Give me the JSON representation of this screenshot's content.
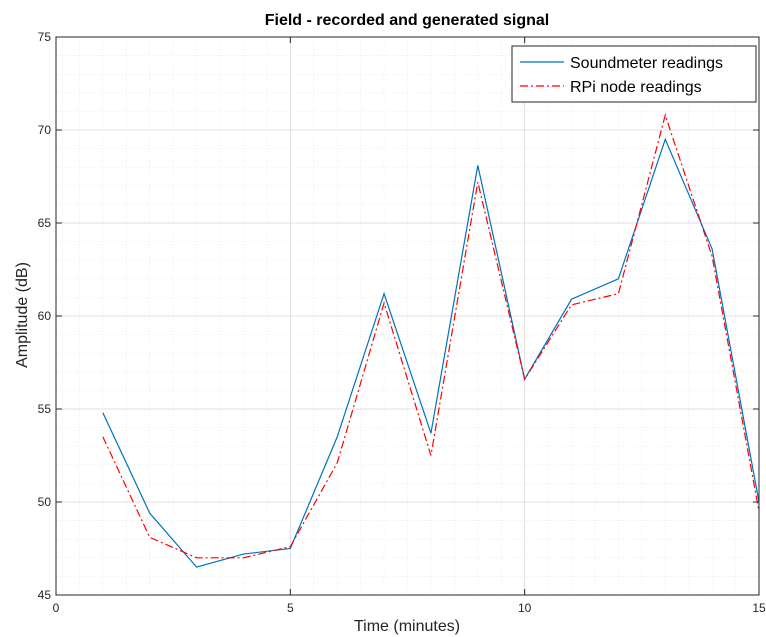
{
  "chart_data": {
    "type": "line",
    "title": "Field - recorded and generated signal",
    "xlabel": "Time (minutes)",
    "ylabel": "Amplitude (dB)",
    "xlim": [
      0,
      15
    ],
    "ylim": [
      45,
      75
    ],
    "xticks": [
      "0",
      "5",
      "10",
      "15"
    ],
    "yticks": [
      "45",
      "50",
      "55",
      "60",
      "65",
      "70",
      "75"
    ],
    "grid": "on (minor dotted)",
    "legend_location": "top-right",
    "x": [
      1,
      2,
      3,
      4,
      5,
      6,
      7,
      8,
      9,
      10,
      11,
      12,
      13,
      14,
      15
    ],
    "series": [
      {
        "name": "Soundmeter readings",
        "color": "#0072BD",
        "linestyle": "solid",
        "values": [
          54.8,
          49.4,
          46.5,
          47.2,
          47.5,
          53.5,
          61.2,
          53.7,
          68.1,
          56.6,
          60.9,
          62.0,
          69.5,
          63.6,
          50.0
        ]
      },
      {
        "name": "RPi node readings",
        "color": "#FF0000",
        "linestyle": "dashdot",
        "values": [
          53.5,
          48.1,
          47.0,
          47.0,
          47.6,
          52.1,
          60.7,
          52.5,
          67.2,
          56.6,
          60.6,
          61.2,
          70.8,
          63.2,
          49.5
        ]
      }
    ]
  }
}
